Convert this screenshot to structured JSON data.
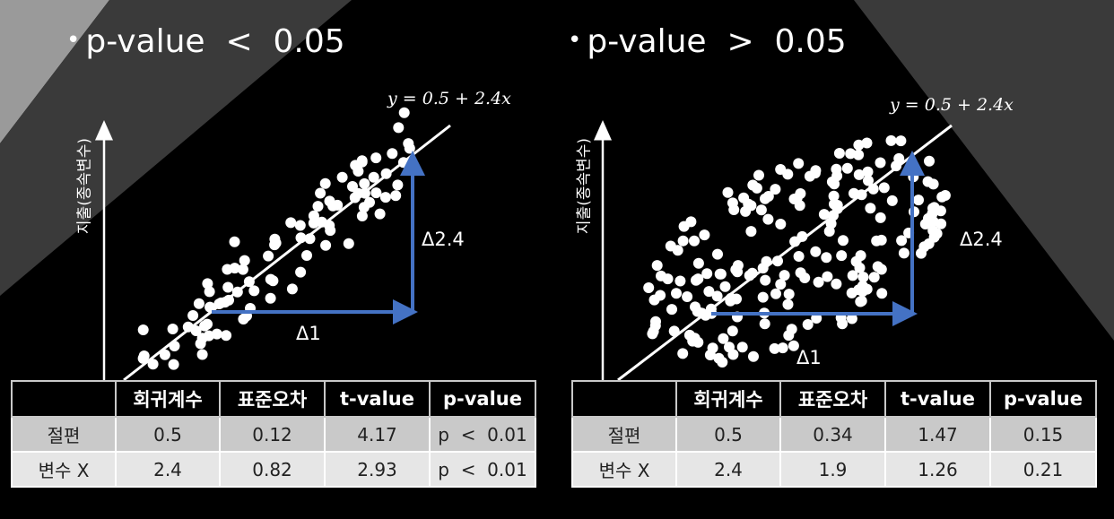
{
  "left": {
    "title": "p-value  <  0.05",
    "ylabel": "지출(종속변수)",
    "equation": "y = 0.5 + 2.4x",
    "delta_x": "Δ1",
    "delta_y": "Δ2.4",
    "table": {
      "headers": [
        "",
        "회귀계수",
        "표준오차",
        "t-value",
        "p-value"
      ],
      "rows": [
        [
          "절편",
          "0.5",
          "0.12",
          "4.17",
          "p  <  0.01"
        ],
        [
          "변수 X",
          "2.4",
          "0.82",
          "2.93",
          "p  <  0.01"
        ]
      ]
    }
  },
  "right": {
    "title": "p-value  >  0.05",
    "ylabel": "지출(종속변수)",
    "equation": "y = 0.5 + 2.4x",
    "delta_x": "Δ1",
    "delta_y": "Δ2.4",
    "table": {
      "headers": [
        "",
        "회귀계수",
        "표준오차",
        "t-value",
        "p-value"
      ],
      "rows": [
        [
          "절편",
          "0.5",
          "0.34",
          "1.47",
          "0.15"
        ],
        [
          "변수 X",
          "2.4",
          "1.9",
          "1.26",
          "0.21"
        ]
      ]
    }
  },
  "colors": {
    "background": "#000000",
    "bg_shape_light": "#a6a6a6",
    "bg_shape_dark": "#3a3a3a",
    "arrow": "#4472c4",
    "points": "#ffffff"
  }
}
